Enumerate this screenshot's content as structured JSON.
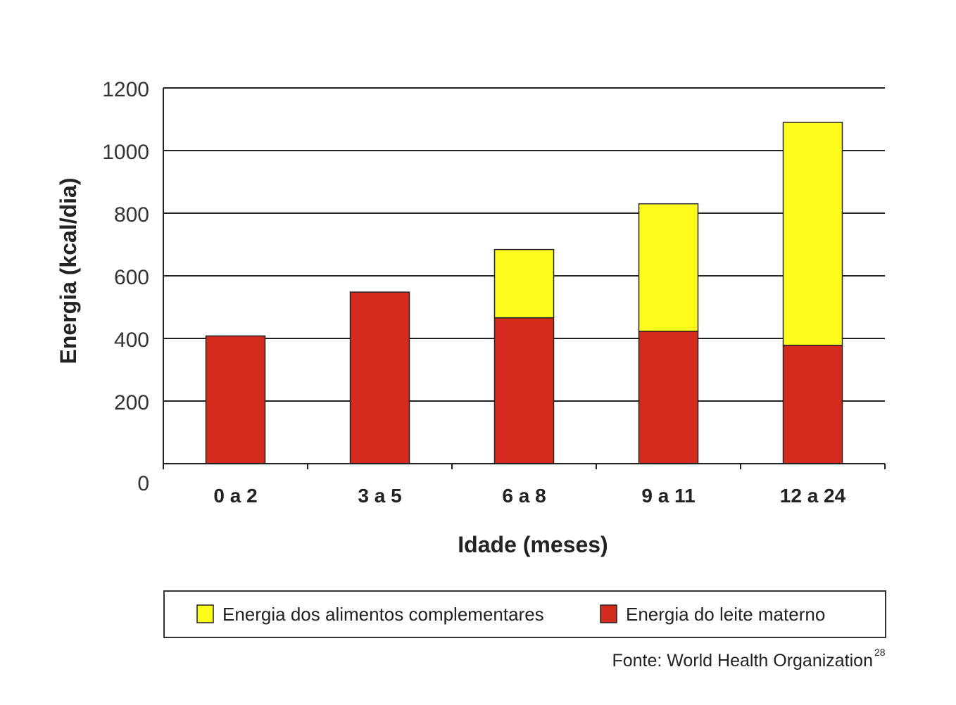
{
  "chart_data": {
    "type": "bar",
    "stacked": true,
    "categories": [
      "0 a 2",
      "3 a 5",
      "6 a 8",
      "9 a 11",
      "12 a 24"
    ],
    "series": [
      {
        "name": "Energia do leite materno",
        "color": "#d42b1e",
        "values": [
          408,
          548,
          466,
          423,
          378
        ]
      },
      {
        "name": "Energia dos alimentos complementares",
        "color": "#fffb1a",
        "values": [
          0,
          0,
          218,
          407,
          712
        ]
      }
    ],
    "xlabel": "Idade (meses)",
    "ylabel": "Energia (kcal/dia)",
    "ylim": [
      0,
      1200
    ],
    "yticks": [
      0,
      200,
      400,
      600,
      800,
      1000,
      1200
    ],
    "grid": true,
    "legend": "bottom",
    "legend_order": [
      "Energia dos alimentos complementares",
      "Energia do leite materno"
    ]
  },
  "source": {
    "text": "Fonte: World Health Organization",
    "superscript": "28"
  }
}
